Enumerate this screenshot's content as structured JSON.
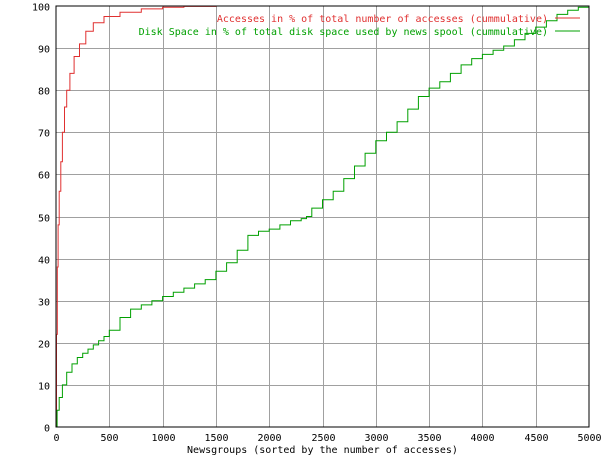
{
  "chart_data": {
    "type": "line",
    "title": "",
    "xlabel": "Newsgroups (sorted by the number of accesses)",
    "ylabel": "",
    "xlim": [
      0,
      5000
    ],
    "ylim": [
      0,
      100
    ],
    "x_ticks": [
      0,
      500,
      1000,
      1500,
      2000,
      2500,
      3000,
      3500,
      4000,
      4500,
      5000
    ],
    "y_ticks": [
      0,
      10,
      20,
      30,
      40,
      50,
      60,
      70,
      80,
      90,
      100
    ],
    "grid": true,
    "legend_position": "top-right",
    "series": [
      {
        "name": "Accesses in % of total number of accesses (cummulative)",
        "color": "#e03030",
        "points": [
          [
            0,
            0
          ],
          [
            5,
            22
          ],
          [
            12,
            38
          ],
          [
            20,
            48
          ],
          [
            30,
            56
          ],
          [
            45,
            63
          ],
          [
            60,
            70
          ],
          [
            80,
            76
          ],
          [
            100,
            80
          ],
          [
            130,
            84
          ],
          [
            170,
            88
          ],
          [
            220,
            91
          ],
          [
            280,
            94
          ],
          [
            350,
            96
          ],
          [
            450,
            97.5
          ],
          [
            600,
            98.5
          ],
          [
            800,
            99.3
          ],
          [
            1000,
            99.7
          ],
          [
            1200,
            99.9
          ],
          [
            1500,
            100
          ],
          [
            5000,
            100
          ]
        ]
      },
      {
        "name": "Disk Space in % of total disk space used by news spool (cummulative)",
        "color": "#00a000",
        "points": [
          [
            0,
            0
          ],
          [
            10,
            4
          ],
          [
            30,
            7
          ],
          [
            60,
            10
          ],
          [
            100,
            13
          ],
          [
            150,
            15
          ],
          [
            200,
            16.5
          ],
          [
            250,
            17.5
          ],
          [
            300,
            18.5
          ],
          [
            350,
            19.5
          ],
          [
            400,
            20.5
          ],
          [
            450,
            21.5
          ],
          [
            500,
            23
          ],
          [
            600,
            26
          ],
          [
            700,
            28
          ],
          [
            800,
            29
          ],
          [
            900,
            30
          ],
          [
            1000,
            31
          ],
          [
            1100,
            32
          ],
          [
            1200,
            33
          ],
          [
            1300,
            34
          ],
          [
            1400,
            35
          ],
          [
            1500,
            37
          ],
          [
            1600,
            39
          ],
          [
            1700,
            42
          ],
          [
            1800,
            45.5
          ],
          [
            1900,
            46.5
          ],
          [
            2000,
            47
          ],
          [
            2100,
            48
          ],
          [
            2200,
            49
          ],
          [
            2300,
            49.5
          ],
          [
            2350,
            50
          ],
          [
            2400,
            52
          ],
          [
            2500,
            54
          ],
          [
            2600,
            56
          ],
          [
            2700,
            59
          ],
          [
            2800,
            62
          ],
          [
            2900,
            65
          ],
          [
            3000,
            68
          ],
          [
            3100,
            70
          ],
          [
            3200,
            72.5
          ],
          [
            3300,
            75.5
          ],
          [
            3400,
            78.5
          ],
          [
            3500,
            80.5
          ],
          [
            3600,
            82
          ],
          [
            3700,
            84
          ],
          [
            3800,
            86
          ],
          [
            3900,
            87.5
          ],
          [
            4000,
            88.5
          ],
          [
            4100,
            89.5
          ],
          [
            4200,
            90.5
          ],
          [
            4300,
            92
          ],
          [
            4400,
            93.5
          ],
          [
            4500,
            95
          ],
          [
            4600,
            96.5
          ],
          [
            4700,
            98
          ],
          [
            4800,
            99
          ],
          [
            4900,
            99.7
          ],
          [
            5000,
            100
          ]
        ]
      }
    ]
  }
}
